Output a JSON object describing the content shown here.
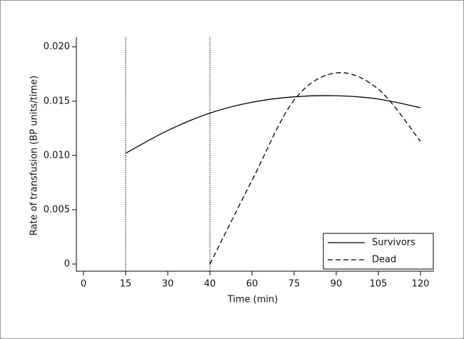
{
  "chart_data": {
    "type": "line",
    "xlabel": "Time (min)",
    "ylabel": "Rate of transfusion (BP units/time)",
    "categories": [
      "0",
      "15",
      "30",
      "40",
      "60",
      "75",
      "90",
      "105",
      "120"
    ],
    "series": [
      {
        "name": "Survivors",
        "color": "#000000",
        "dash": "solid",
        "values": [
          null,
          0.0102,
          0.0123,
          0.0139,
          0.0149,
          0.0154,
          0.0155,
          0.0152,
          0.0144
        ]
      },
      {
        "name": "Dead",
        "color": "#000000",
        "dash": "dashed",
        "values": [
          null,
          null,
          null,
          0.0,
          0.0077,
          0.0151,
          0.0176,
          0.0161,
          0.0113
        ]
      }
    ],
    "vlines": [
      "15",
      "40"
    ],
    "ylim": [
      -0.00066,
      0.0209
    ],
    "yticks": [
      0,
      {
        "value": 0.005,
        "label": "0.005"
      },
      {
        "value": 0.01,
        "label": "0.010"
      },
      {
        "value": 0.015,
        "label": "0.015"
      },
      {
        "value": 0.02,
        "label": "0.020"
      }
    ],
    "legend": "lower right"
  }
}
